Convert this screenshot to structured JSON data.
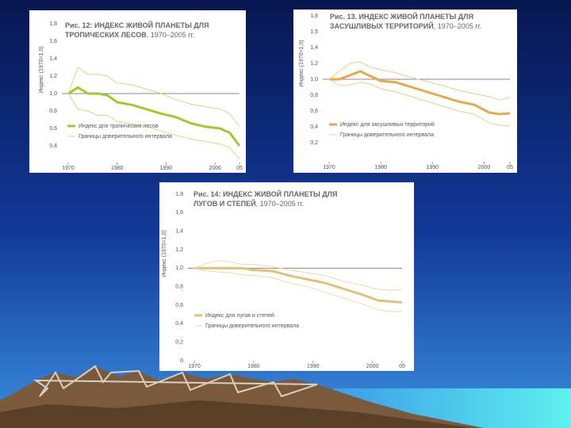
{
  "chart_data": [
    {
      "type": "line",
      "title": [
        "Рис. 12: ИНДЕКС ЖИВОЙ ПЛАНЕТЫ ДЛЯ",
        "ТРОПИЧЕСКИХ ЛЕСОВ"
      ],
      "subtitle": ", 1970–2005 гг.",
      "y_label": "Индекс (1970=1,0)",
      "x": [
        1970,
        1972,
        1974,
        1976,
        1978,
        1980,
        1983,
        1986,
        1989,
        1992,
        1995,
        1998,
        2001,
        2003,
        2005
      ],
      "series": [
        {
          "name": "Индекс для тропических лесов",
          "color": "#9ccc2a",
          "width": 3,
          "values": [
            1.0,
            1.07,
            1.0,
            1.0,
            0.98,
            0.9,
            0.87,
            0.82,
            0.77,
            0.73,
            0.66,
            0.62,
            0.6,
            0.55,
            0.4
          ]
        },
        {
          "name": "Границы доверительного интервала",
          "color": "#c8e07a",
          "width": 1,
          "values": [
            1.0,
            1.3,
            1.22,
            1.22,
            1.2,
            1.12,
            1.1,
            1.05,
            1.0,
            0.93,
            0.88,
            0.85,
            0.82,
            0.77,
            0.62
          ]
        },
        {
          "color": "#c8e07a",
          "width": 1,
          "values": [
            1.0,
            0.82,
            0.8,
            0.75,
            0.75,
            0.68,
            0.65,
            0.62,
            0.57,
            0.52,
            0.48,
            0.45,
            0.42,
            0.38,
            0.25
          ]
        }
      ],
      "reference_line": 1.0,
      "xlim": [
        1970,
        2005
      ],
      "xticks": [
        1970,
        1980,
        1990,
        2000,
        {
          "value": 2005,
          "label": "05"
        }
      ],
      "ylim": [
        0.2,
        1.8
      ],
      "yticks": [
        {
          "value": 0.4,
          "label": "0,4"
        },
        {
          "value": 0.6,
          "label": "0,6"
        },
        {
          "value": 0.8,
          "label": "0,8"
        },
        {
          "value": 1.0,
          "label": "1,0"
        },
        {
          "value": 1.2,
          "label": "1,2"
        },
        {
          "value": 1.4,
          "label": "1,4"
        },
        {
          "value": 1.6,
          "label": "1,6"
        },
        {
          "value": 1.8,
          "label": "1,8"
        }
      ]
    },
    {
      "type": "line",
      "title": [
        "Рис. 13. ИНДЕКС ЖИВОЙ ПЛАНЕТЫ ДЛЯ",
        "ЗАСУШЛИВЫХ ТЕРРИТОРИЙ"
      ],
      "subtitle": ", 1970–2005 гг.",
      "y_label": "Индекс (1970=1,0)",
      "x": [
        1970,
        1972,
        1974,
        1976,
        1978,
        1980,
        1983,
        1986,
        1989,
        1992,
        1995,
        1998,
        2001,
        2003,
        2005
      ],
      "series": [
        {
          "name": "Индекс для засушливых территорий",
          "color": "#e8a848",
          "width": 3,
          "values": [
            1.0,
            1.0,
            1.05,
            1.1,
            1.04,
            0.98,
            0.96,
            0.9,
            0.84,
            0.78,
            0.72,
            0.68,
            0.58,
            0.56,
            0.57
          ]
        },
        {
          "name": "Границы доверительного интервала",
          "color": "#f0c98a",
          "width": 1,
          "values": [
            1.0,
            1.1,
            1.2,
            1.22,
            1.15,
            1.12,
            1.08,
            1.02,
            0.97,
            0.92,
            0.86,
            0.82,
            0.78,
            0.74,
            0.77
          ]
        },
        {
          "color": "#f0c98a",
          "width": 1,
          "values": [
            1.0,
            0.92,
            0.93,
            0.96,
            0.94,
            0.88,
            0.84,
            0.78,
            0.72,
            0.66,
            0.6,
            0.56,
            0.45,
            0.42,
            0.41
          ]
        }
      ],
      "reference_line": 1.0,
      "xlim": [
        1970,
        2005
      ],
      "xticks": [
        1970,
        1980,
        1990,
        2000,
        {
          "value": 2005,
          "label": "05"
        }
      ],
      "ylim": [
        0,
        1.8
      ],
      "yticks": [
        {
          "value": 0.2,
          "label": "0,2"
        },
        {
          "value": 0.4,
          "label": "0,4"
        },
        {
          "value": 0.6,
          "label": "0,6"
        },
        {
          "value": 0.8,
          "label": "0,8"
        },
        {
          "value": 1.0,
          "label": "1,0"
        },
        {
          "value": 1.2,
          "label": "1,2"
        },
        {
          "value": 1.4,
          "label": "1,4"
        },
        {
          "value": 1.6,
          "label": "1,6"
        },
        {
          "value": 1.8,
          "label": "1,8"
        }
      ]
    },
    {
      "type": "line",
      "title": [
        "Рис. 14: ИНДЕКС ЖИВОЙ ПЛАНЕТЫ ДЛЯ",
        "ЛУГОВ И СТЕПЕЙ"
      ],
      "subtitle": ", 1970–2005 гг.",
      "y_label": "Индекс (1970=1,0)",
      "x": [
        1970,
        1972,
        1974,
        1976,
        1978,
        1980,
        1983,
        1986,
        1989,
        1992,
        1995,
        1998,
        2001,
        2003,
        2005
      ],
      "series": [
        {
          "name": "Индекс для лугов и степей",
          "color": "#e2c078",
          "width": 3,
          "values": [
            1.0,
            1.0,
            1.0,
            1.0,
            1.0,
            0.98,
            0.97,
            0.92,
            0.88,
            0.84,
            0.78,
            0.72,
            0.65,
            0.64,
            0.63
          ]
        },
        {
          "name": "Границы доверительного интервала",
          "color": "#eed9a6",
          "width": 1,
          "values": [
            1.0,
            1.05,
            1.08,
            1.07,
            1.04,
            1.04,
            1.02,
            0.98,
            0.95,
            0.92,
            0.86,
            0.82,
            0.77,
            0.76,
            0.77
          ]
        },
        {
          "color": "#eed9a6",
          "width": 1,
          "values": [
            1.0,
            0.97,
            0.96,
            0.95,
            0.93,
            0.92,
            0.9,
            0.84,
            0.8,
            0.74,
            0.68,
            0.62,
            0.55,
            0.53,
            0.53
          ]
        }
      ],
      "reference_line": 1.0,
      "xlim": [
        1970,
        2005
      ],
      "xticks": [
        1970,
        1980,
        1990,
        2000,
        {
          "value": 2005,
          "label": "05"
        }
      ],
      "ylim": [
        0,
        1.8
      ],
      "yticks": [
        0,
        {
          "value": 0.2,
          "label": "0,2"
        },
        {
          "value": 0.4,
          "label": "0,4"
        },
        {
          "value": 0.6,
          "label": "0,6"
        },
        {
          "value": 0.8,
          "label": "0,8"
        },
        {
          "value": 1.0,
          "label": "1,0"
        },
        {
          "value": 1.2,
          "label": "1,2"
        },
        {
          "value": 1.4,
          "label": "1,4"
        },
        {
          "value": 1.6,
          "label": "1,6"
        },
        {
          "value": 1.8,
          "label": "1,8"
        }
      ]
    }
  ]
}
